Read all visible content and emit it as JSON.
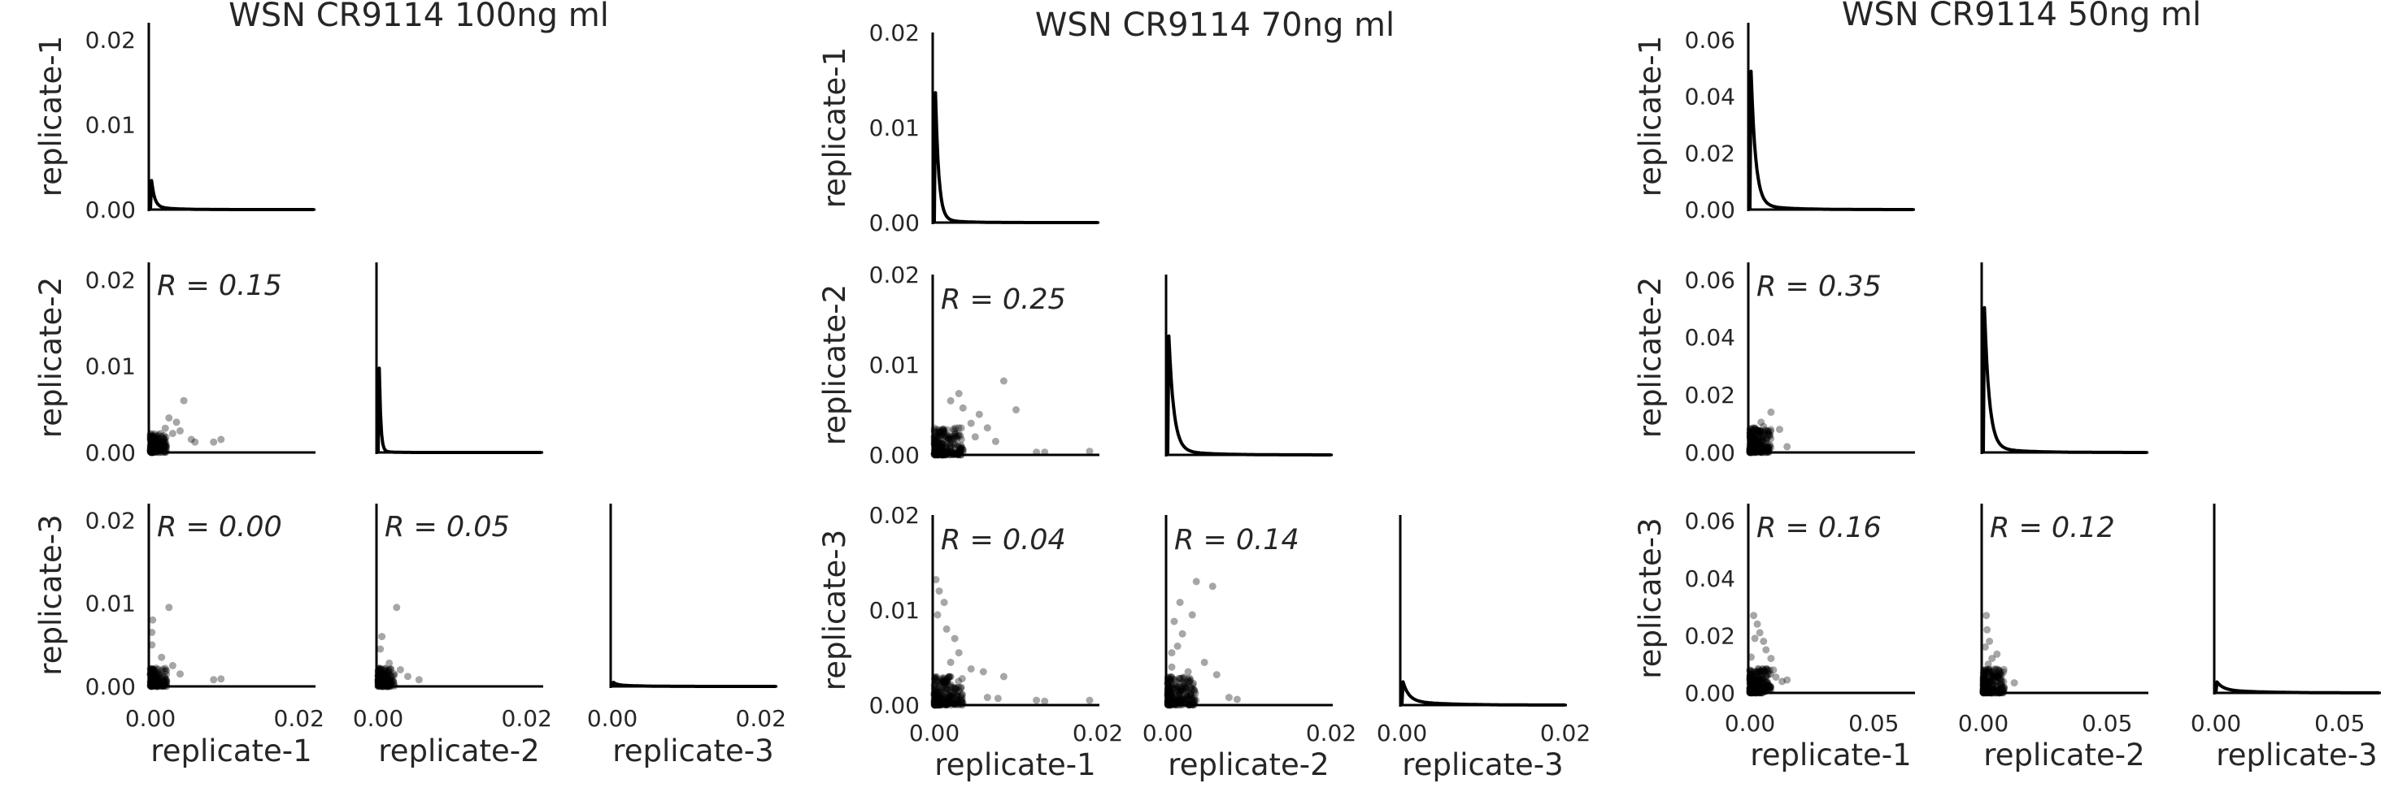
{
  "colors": {
    "ink": "#000000",
    "text": "#262626",
    "point": "rgba(0,0,0,0.35)"
  },
  "chart_data": [
    {
      "type": "scatter",
      "title": "WSN CR9114 100ng ml",
      "variables": [
        "replicate-1",
        "replicate-2",
        "replicate-3"
      ],
      "axis_range": [
        0,
        0.022
      ],
      "axis_ticks": [
        0.0,
        0.01,
        0.02
      ],
      "tick_labels": [
        "0.00",
        "0.01",
        "0.02"
      ],
      "x_tick_labels": [
        "0.00",
        "0.02"
      ],
      "diagonal_ylim": [
        [
          0,
          0.022
        ],
        [
          0,
          0.022
        ],
        [
          0,
          0.022
        ]
      ],
      "diagonal_tick_labels": [
        [
          "0.00",
          "0.01",
          "0.02"
        ],
        [],
        []
      ],
      "densities": [
        {
          "peak": 0.0045,
          "decay": 0.0004,
          "tail": 0.0004
        },
        {
          "peak": 0.021,
          "decay": 0.0002,
          "tail": 0.0002
        },
        {
          "peak": 0.0004,
          "decay": 0.0005,
          "tail": 0.0002
        }
      ],
      "correlations": [
        {
          "row": "replicate-2",
          "col": "replicate-1",
          "label": "R = 0.15",
          "points": [
            [
              0.0045,
              0.006
            ],
            [
              0.0035,
              0.0035
            ],
            [
              0.004,
              0.0025
            ],
            [
              0.0025,
              0.004
            ],
            [
              0.002,
              0.0028
            ],
            [
              0.003,
              0.0022
            ],
            [
              0.0085,
              0.0012
            ],
            [
              0.0095,
              0.0015
            ],
            [
              0.0055,
              0.0015
            ],
            [
              0.006,
              0.0012
            ]
          ]
        },
        {
          "row": "replicate-3",
          "col": "replicate-1",
          "label": "R = 0.00",
          "points": [
            [
              0.0025,
              0.0095
            ],
            [
              0.0003,
              0.008
            ],
            [
              0.0002,
              0.0065
            ],
            [
              0.0002,
              0.005
            ],
            [
              0.003,
              0.0025
            ],
            [
              0.004,
              0.0015
            ],
            [
              0.0085,
              0.0008
            ],
            [
              0.0095,
              0.0009
            ],
            [
              0.0015,
              0.0035
            ]
          ]
        },
        {
          "row": "replicate-3",
          "col": "replicate-2",
          "label": "R = 0.05",
          "points": [
            [
              0.0025,
              0.0095
            ],
            [
              0.0005,
              0.006
            ],
            [
              0.0003,
              0.0045
            ],
            [
              0.0015,
              0.0028
            ],
            [
              0.004,
              0.0012
            ],
            [
              0.0055,
              0.0008
            ],
            [
              0.003,
              0.002
            ]
          ]
        }
      ],
      "cluster": {
        "x_max": 0.0022,
        "y_max": 0.0022,
        "count": 150
      }
    },
    {
      "type": "scatter",
      "title": "WSN CR9114 70ng ml",
      "variables": [
        "replicate-1",
        "replicate-2",
        "replicate-3"
      ],
      "axis_range": [
        0,
        0.02
      ],
      "axis_ticks": [
        0.0,
        0.01,
        0.02
      ],
      "tick_labels": [
        "0.00",
        "0.01",
        "0.02"
      ],
      "x_tick_labels": [
        "0.00",
        "0.02"
      ],
      "diagonal_ylim": [
        [
          0,
          0.02
        ],
        [
          0,
          0.02
        ],
        [
          0,
          0.02
        ]
      ],
      "diagonal_tick_labels": [
        [
          "0.00",
          "0.01",
          "0.02"
        ],
        [],
        []
      ],
      "densities": [
        {
          "peak": 0.019,
          "decay": 0.0004,
          "tail": 0.0004
        },
        {
          "peak": 0.016,
          "decay": 0.0006,
          "tail": 0.0006
        },
        {
          "peak": 0.0024,
          "decay": 0.0007,
          "tail": 0.0005
        }
      ],
      "correlations": [
        {
          "row": "replicate-2",
          "col": "replicate-1",
          "label": "R = 0.25",
          "points": [
            [
              0.0085,
              0.0082
            ],
            [
              0.01,
              0.005
            ],
            [
              0.0065,
              0.003
            ],
            [
              0.0055,
              0.0045
            ],
            [
              0.005,
              0.002
            ],
            [
              0.0045,
              0.0035
            ],
            [
              0.003,
              0.0068
            ],
            [
              0.002,
              0.006
            ],
            [
              0.0125,
              0.0003
            ],
            [
              0.0135,
              0.0003
            ],
            [
              0.019,
              0.0004
            ],
            [
              0.0035,
              0.0052
            ],
            [
              0.0075,
              0.0015
            ]
          ]
        },
        {
          "row": "replicate-3",
          "col": "replicate-1",
          "label": "R = 0.04",
          "points": [
            [
              0.0002,
              0.0132
            ],
            [
              0.0006,
              0.012
            ],
            [
              0.0012,
              0.0108
            ],
            [
              0.0004,
              0.0095
            ],
            [
              0.0015,
              0.008
            ],
            [
              0.0025,
              0.007
            ],
            [
              0.003,
              0.0055
            ],
            [
              0.0045,
              0.0038
            ],
            [
              0.006,
              0.0035
            ],
            [
              0.0085,
              0.003
            ],
            [
              0.0125,
              0.0005
            ],
            [
              0.0135,
              0.0004
            ],
            [
              0.019,
              0.0005
            ],
            [
              0.0065,
              0.0008
            ],
            [
              0.0078,
              0.0007
            ],
            [
              0.002,
              0.0045
            ]
          ]
        },
        {
          "row": "replicate-3",
          "col": "replicate-2",
          "label": "R = 0.14",
          "points": [
            [
              0.0035,
              0.013
            ],
            [
              0.0055,
              0.0125
            ],
            [
              0.0015,
              0.0108
            ],
            [
              0.003,
              0.0095
            ],
            [
              0.0008,
              0.0088
            ],
            [
              0.0018,
              0.0075
            ],
            [
              0.0012,
              0.0062
            ],
            [
              0.0005,
              0.0055
            ],
            [
              0.0045,
              0.0045
            ],
            [
              0.006,
              0.0032
            ],
            [
              0.0075,
              0.0008
            ],
            [
              0.0085,
              0.0006
            ],
            [
              0.0025,
              0.0035
            ],
            [
              0.0005,
              0.004
            ]
          ]
        }
      ],
      "cluster": {
        "x_max": 0.0035,
        "y_max": 0.003,
        "count": 220
      }
    },
    {
      "type": "scatter",
      "title": "WSN CR9114 50ng ml",
      "variables": [
        "replicate-1",
        "replicate-2",
        "replicate-3"
      ],
      "axis_range": [
        0,
        0.066
      ],
      "axis_ticks": [
        0.0,
        0.02,
        0.04,
        0.06
      ],
      "tick_labels": [
        "0.00",
        "0.02",
        "0.04",
        "0.06"
      ],
      "x_tick_labels": [
        "0.00",
        "0.05"
      ],
      "diagonal_ylim": [
        [
          0,
          0.066
        ],
        [
          0,
          0.066
        ],
        [
          0,
          0.066
        ]
      ],
      "diagonal_tick_labels": [
        [
          "0.00",
          "0.02",
          "0.04",
          "0.06"
        ],
        [],
        []
      ],
      "densities": [
        {
          "peak": 0.061,
          "decay": 0.0018,
          "tail": 0.002
        },
        {
          "peak": 0.062,
          "decay": 0.0019,
          "tail": 0.002
        },
        {
          "peak": 0.0032,
          "decay": 0.0025,
          "tail": 0.0012
        }
      ],
      "correlations": [
        {
          "row": "replicate-2",
          "col": "replicate-1",
          "label": "R = 0.35",
          "points": [
            [
              0.0085,
              0.014
            ],
            [
              0.0055,
              0.009
            ],
            [
              0.012,
              0.008
            ],
            [
              0.015,
              0.002
            ],
            [
              0.0035,
              0.007
            ],
            [
              0.002,
              0.0085
            ],
            [
              0.0075,
              0.0065
            ],
            [
              0.0045,
              0.0105
            ]
          ]
        },
        {
          "row": "replicate-3",
          "col": "replicate-1",
          "label": "R = 0.16",
          "points": [
            [
              0.0015,
              0.027
            ],
            [
              0.003,
              0.024
            ],
            [
              0.004,
              0.021
            ],
            [
              0.0055,
              0.018
            ],
            [
              0.0065,
              0.015
            ],
            [
              0.0085,
              0.012
            ],
            [
              0.002,
              0.019
            ],
            [
              0.0095,
              0.008
            ],
            [
              0.013,
              0.004
            ],
            [
              0.015,
              0.0045
            ],
            [
              0.0105,
              0.0055
            ],
            [
              0.0005,
              0.0125
            ]
          ]
        },
        {
          "row": "replicate-3",
          "col": "replicate-2",
          "label": "R = 0.12",
          "points": [
            [
              0.0012,
              0.027
            ],
            [
              0.0015,
              0.022
            ],
            [
              0.0025,
              0.018
            ],
            [
              0.0008,
              0.016
            ],
            [
              0.0035,
              0.012
            ],
            [
              0.002,
              0.01
            ],
            [
              0.005,
              0.008
            ],
            [
              0.004,
              0.006
            ],
            [
              0.0125,
              0.0035
            ],
            [
              0.0055,
              0.0135
            ]
          ]
        }
      ],
      "cluster": {
        "x_max": 0.0085,
        "y_max": 0.0085,
        "count": 220
      }
    }
  ]
}
